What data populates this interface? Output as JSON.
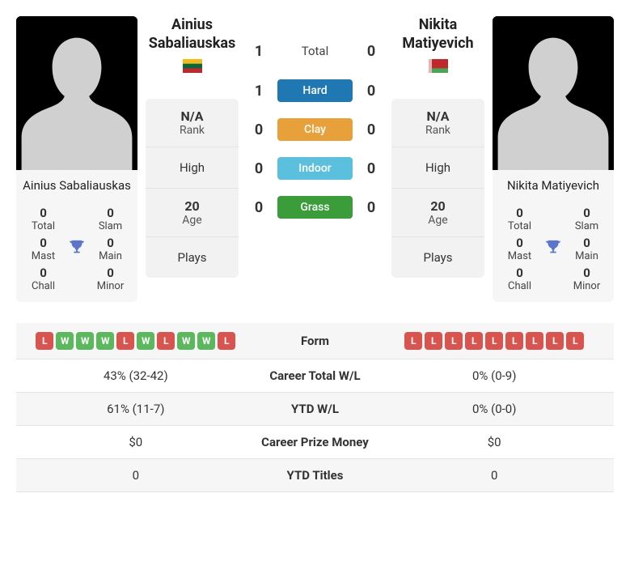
{
  "colors": {
    "surface_hard": "#1f78b4",
    "surface_clay": "#e8a13a",
    "surface_indoor": "#5bc0de",
    "surface_grass": "#3a9d3a",
    "form_win": "#5cb85c",
    "form_loss": "#d9534f",
    "flag_p1_top": "#fdb913",
    "flag_p1_mid": "#006a44",
    "flag_p1_bot": "#c1272d",
    "flag_p2_left": "#c1272d",
    "flag_p2_right": "#4aa657"
  },
  "p1": {
    "name": "Ainius Sabaliauskas",
    "titles": {
      "total": {
        "value": "0",
        "label": "Total"
      },
      "slam": {
        "value": "0",
        "label": "Slam"
      },
      "mast": {
        "value": "0",
        "label": "Mast"
      },
      "main": {
        "value": "0",
        "label": "Main"
      },
      "chall": {
        "value": "0",
        "label": "Chall"
      },
      "minor": {
        "value": "0",
        "label": "Minor"
      }
    },
    "rank": {
      "value": "N/A",
      "label": "Rank"
    },
    "high": "High",
    "age": {
      "value": "20",
      "label": "Age"
    },
    "plays": "Plays",
    "form": [
      "L",
      "W",
      "W",
      "W",
      "L",
      "W",
      "L",
      "W",
      "W",
      "L"
    ],
    "career_wl": "43% (32-42)",
    "ytd_wl": "61% (11-7)",
    "prize": "$0",
    "ytd_titles": "0"
  },
  "p2": {
    "name": "Nikita Matiyevich",
    "titles": {
      "total": {
        "value": "0",
        "label": "Total"
      },
      "slam": {
        "value": "0",
        "label": "Slam"
      },
      "mast": {
        "value": "0",
        "label": "Mast"
      },
      "main": {
        "value": "0",
        "label": "Main"
      },
      "chall": {
        "value": "0",
        "label": "Chall"
      },
      "minor": {
        "value": "0",
        "label": "Minor"
      }
    },
    "rank": {
      "value": "N/A",
      "label": "Rank"
    },
    "high": "High",
    "age": {
      "value": "20",
      "label": "Age"
    },
    "plays": "Plays",
    "form": [
      "L",
      "L",
      "L",
      "L",
      "L",
      "L",
      "L",
      "L",
      "L"
    ],
    "career_wl": "0% (0-9)",
    "ytd_wl": "0% (0-0)",
    "prize": "$0",
    "ytd_titles": "0"
  },
  "h2h": {
    "total": {
      "p1": "1",
      "p2": "0",
      "label": "Total"
    },
    "hard": {
      "p1": "1",
      "p2": "0",
      "label": "Hard"
    },
    "clay": {
      "p1": "0",
      "p2": "0",
      "label": "Clay"
    },
    "indoor": {
      "p1": "0",
      "p2": "0",
      "label": "Indoor"
    },
    "grass": {
      "p1": "0",
      "p2": "0",
      "label": "Grass"
    }
  },
  "cmp_labels": {
    "form": "Form",
    "career_wl": "Career Total W/L",
    "ytd_wl": "YTD W/L",
    "prize": "Career Prize Money",
    "ytd_titles": "YTD Titles"
  }
}
